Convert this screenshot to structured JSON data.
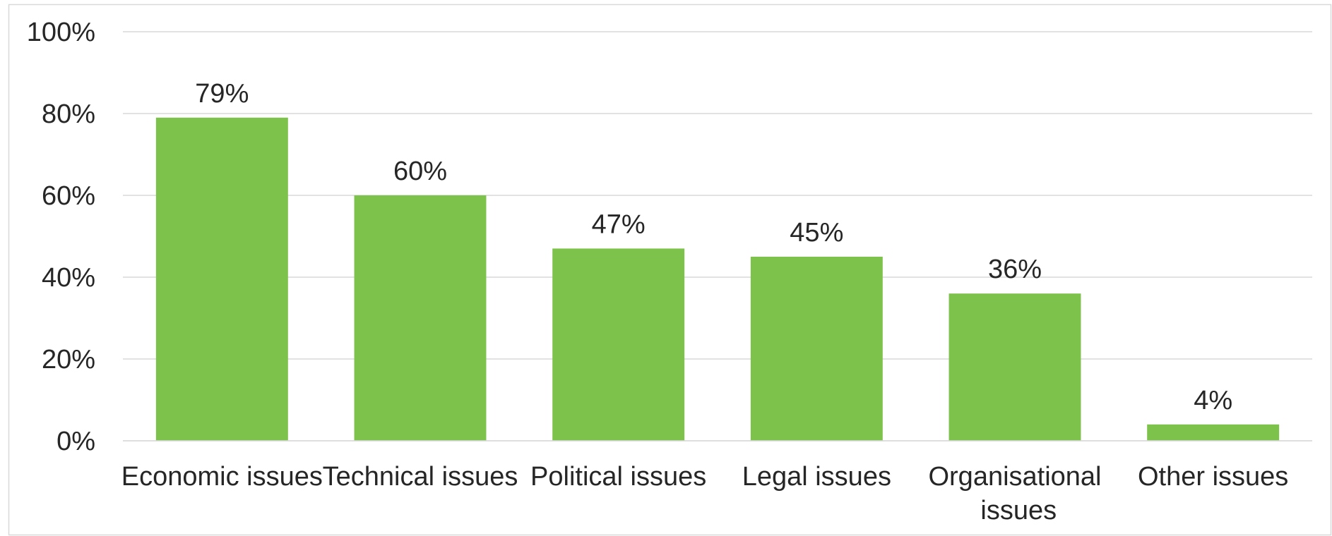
{
  "chart_data": {
    "type": "bar",
    "categories": [
      "Economic issues",
      "Technical issues",
      "Political issues",
      "Legal issues",
      "Organisational issues",
      "Other issues"
    ],
    "values": [
      79,
      60,
      47,
      45,
      36,
      4
    ],
    "value_labels": [
      "79%",
      "60%",
      "47%",
      "45%",
      "36%",
      "4%"
    ],
    "color": "#7dc24b",
    "ylim": [
      0,
      100
    ],
    "yticks": [
      {
        "value": 0,
        "label": "0%"
      },
      {
        "value": 20,
        "label": "20%"
      },
      {
        "value": 40,
        "label": "40%"
      },
      {
        "value": 60,
        "label": "60%"
      },
      {
        "value": 80,
        "label": "80%"
      },
      {
        "value": 100,
        "label": "100%"
      }
    ],
    "grid": true
  }
}
